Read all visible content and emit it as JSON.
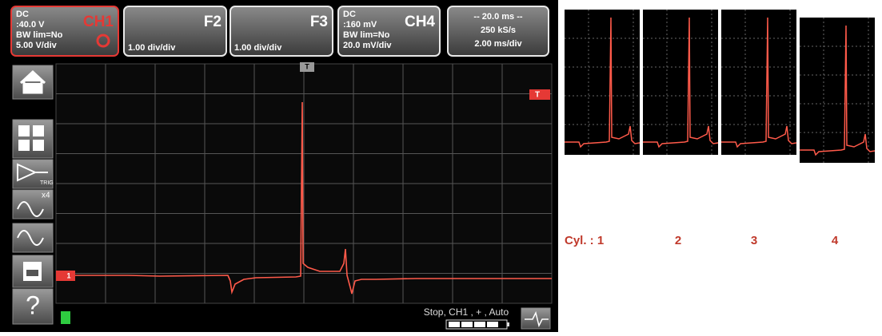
{
  "channels": [
    {
      "coupling": "DC",
      "offset": ":40.0 V",
      "bandwidth": "BW lim=No",
      "scale": "5.00 V/div",
      "name": "CH1"
    },
    {
      "name": "F2",
      "scale": "1.00 div/div"
    },
    {
      "name": "F3",
      "scale": "1.00 div/div"
    },
    {
      "coupling": "DC",
      "offset": ":160 mV",
      "bandwidth": "BW lim=No",
      "scale": "20.0 mV/div",
      "name": "CH4"
    }
  ],
  "timebase": {
    "span": "-- 20.0 ms --",
    "rate": "250 kS/s",
    "scale": "2.00 ms/div"
  },
  "toolbar": {
    "zoom": "x4",
    "trig": "TRIG",
    "help": "?"
  },
  "markers": {
    "trigger_top": "T",
    "trigger_right": "T",
    "ground": "1"
  },
  "status": "Stop, CH1 , + , Auto",
  "cylinders": {
    "first": "Cyl. : 1",
    "others": [
      "2",
      "3",
      "4"
    ]
  }
}
